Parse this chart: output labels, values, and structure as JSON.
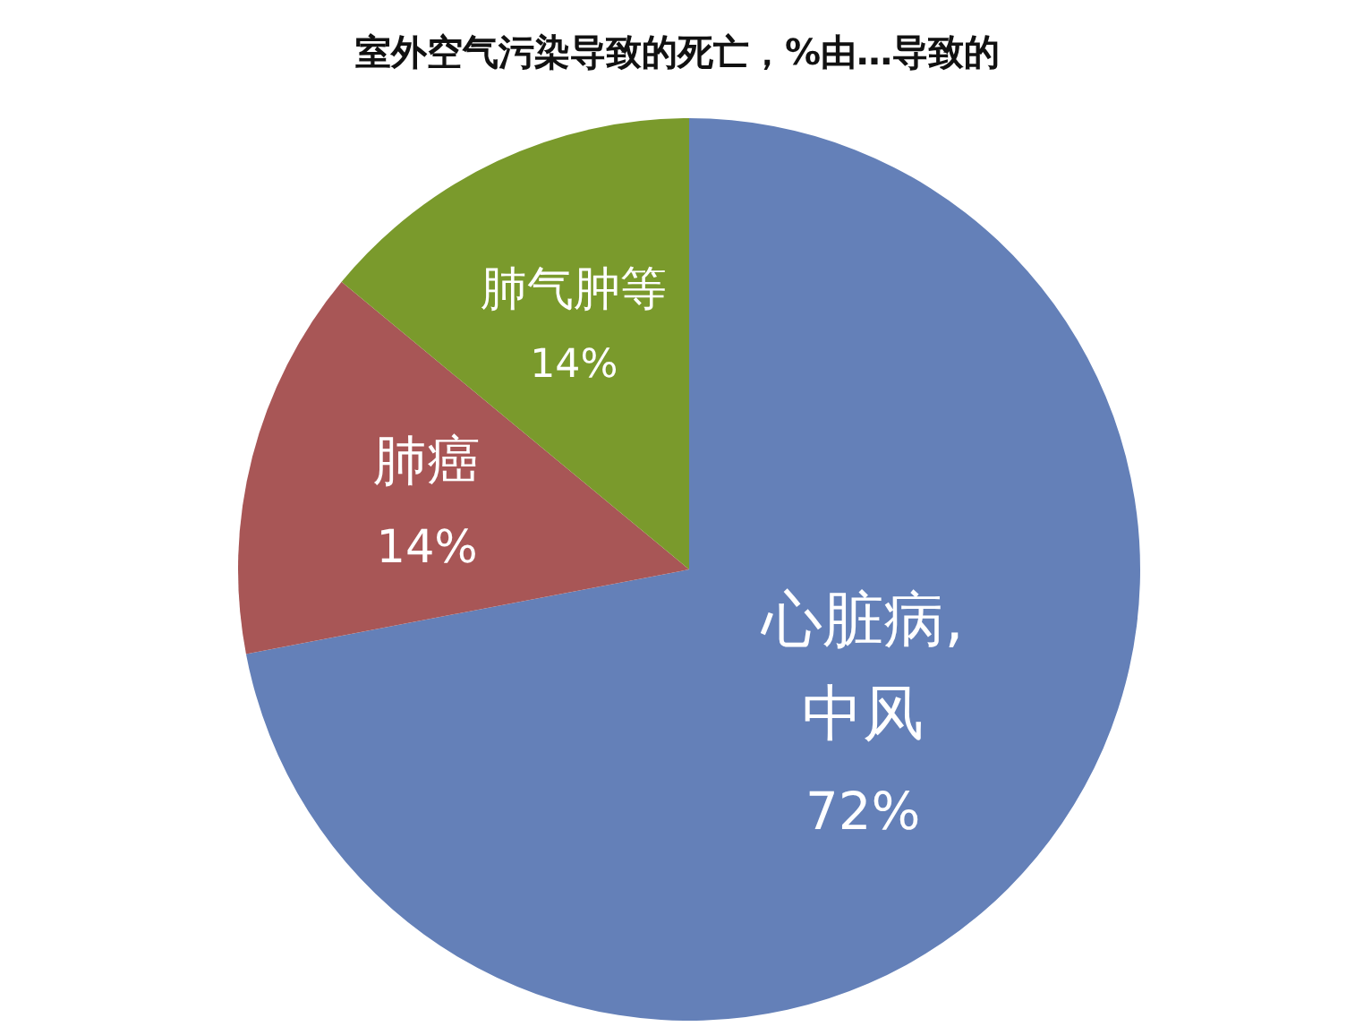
{
  "chart_data": {
    "type": "pie",
    "title": "室外空气污染导致的死亡，%由…导致的",
    "categories": [
      "心脏病,\n中风",
      "肺癌",
      "肺气肿等"
    ],
    "values": [
      72,
      14,
      14
    ],
    "colors": [
      "#6480b8",
      "#a85656",
      "#7a9a2c"
    ],
    "value_labels": [
      "72%",
      "14%",
      "14%"
    ]
  }
}
